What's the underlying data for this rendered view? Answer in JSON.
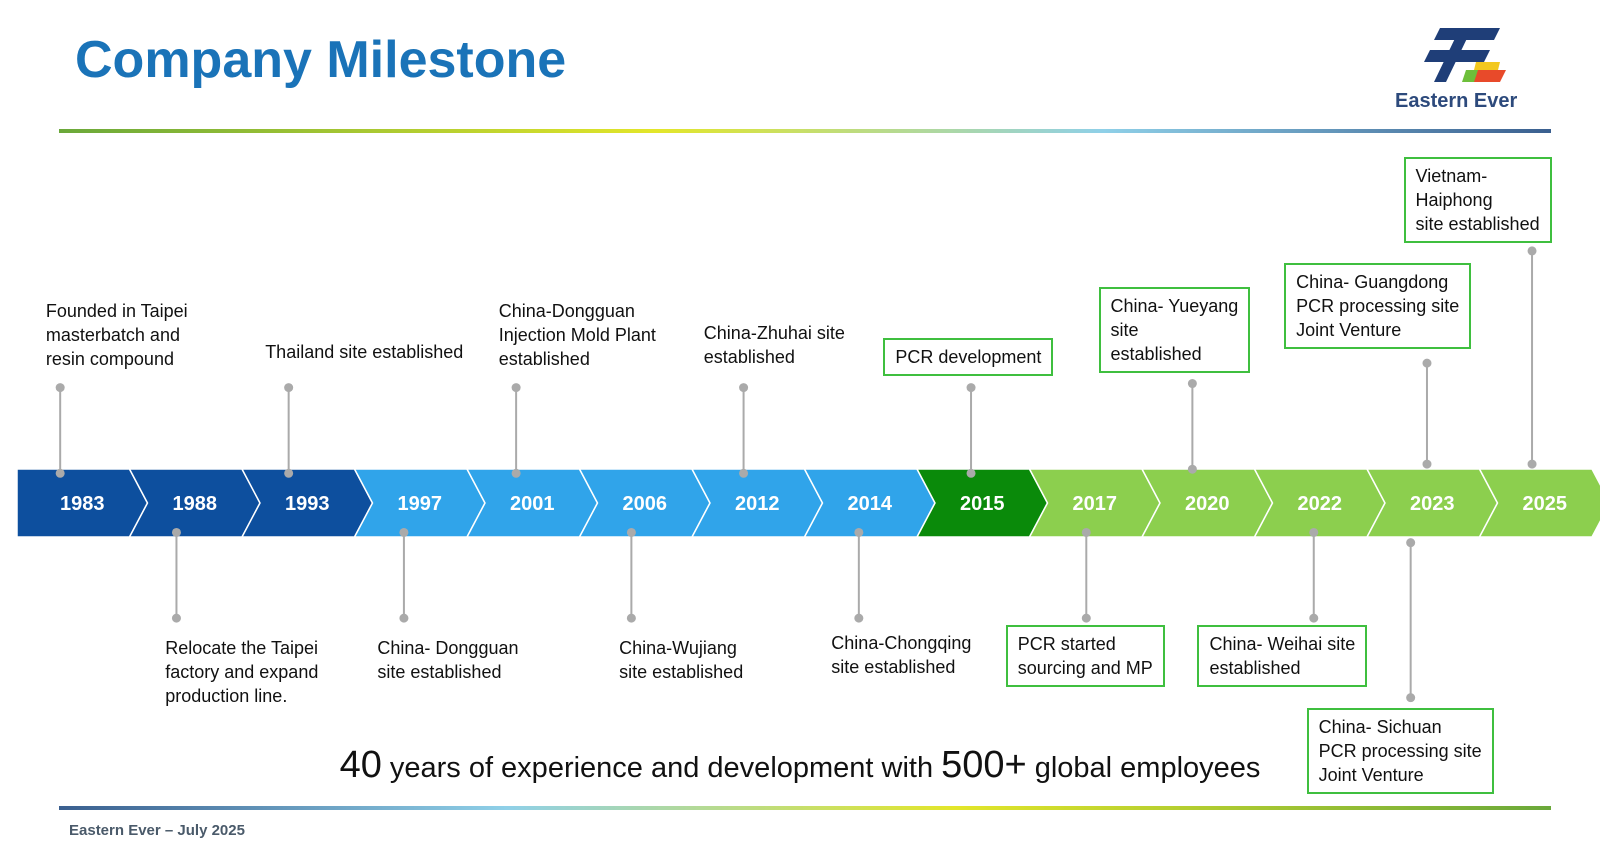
{
  "header": {
    "title": "Company Milestone"
  },
  "logo": {
    "text": "Eastern Ever"
  },
  "timeline": {
    "years": [
      "1983",
      "1988",
      "1993",
      "1997",
      "2001",
      "2006",
      "2012",
      "2014",
      "2015",
      "2017",
      "2020",
      "2022",
      "2023",
      "2025"
    ]
  },
  "milestones_top": [
    {
      "label": "Founded in Taipei\nmasterbatch and\nresin compound"
    },
    {
      "label": "Thailand site established"
    },
    {
      "label": "China-Dongguan\nInjection Mold Plant\nestablished"
    },
    {
      "label": "China-Zhuhai site\nestablished"
    },
    {
      "label": "PCR development"
    },
    {
      "label": "China- Yueyang\nsite\nestablished"
    },
    {
      "label": "China- Guangdong\nPCR processing site\nJoint Venture"
    },
    {
      "label": "Vietnam-\nHaiphong\nsite established"
    }
  ],
  "milestones_bottom": [
    {
      "label": "Relocate the Taipei\nfactory and expand\nproduction line."
    },
    {
      "label": "China- Dongguan\nsite established"
    },
    {
      "label": "China-Wujiang\nsite established"
    },
    {
      "label": "China-Chongqing\nsite established"
    },
    {
      "label": "PCR started\nsourcing and MP"
    },
    {
      "label": "China- Weihai site\nestablished"
    },
    {
      "label": "China- Sichuan\nPCR processing site\nJoint Venture"
    }
  ],
  "tagline": {
    "number1": "40",
    "text1": "years of experience and development with",
    "number2": "500+",
    "text2": "global employees"
  },
  "footer": {
    "text": "Eastern Ever – July 2025"
  }
}
